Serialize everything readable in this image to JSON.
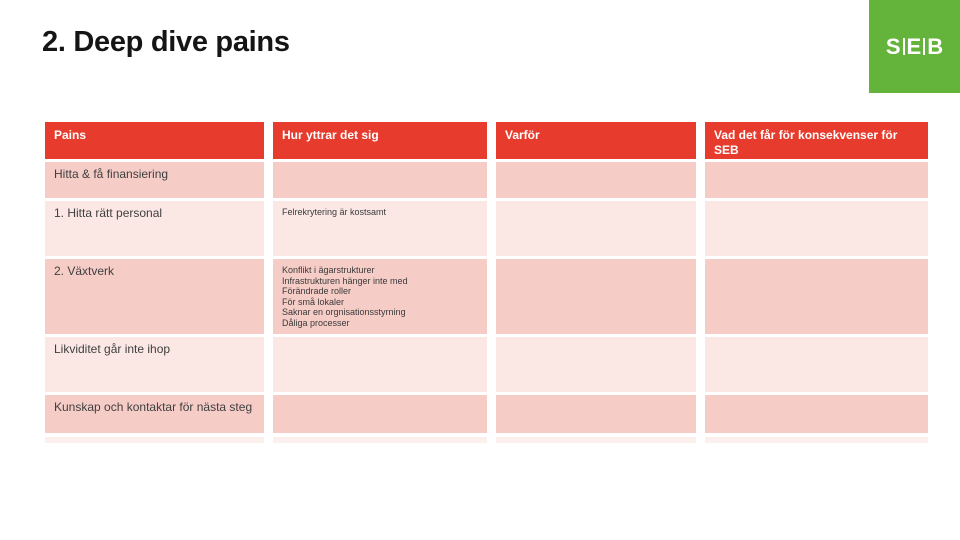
{
  "slide": {
    "title": "2. Deep dive pains"
  },
  "logo": {
    "letters": [
      "S",
      "E",
      "B"
    ]
  },
  "table": {
    "headers": [
      "Pains",
      "Hur yttrar det sig",
      "Varför",
      "Vad det får för konsekvenser för SEB"
    ],
    "rows": [
      {
        "pains": "Hitta & få finansiering",
        "hur": "",
        "varfor": "",
        "konsekvenser": ""
      },
      {
        "pains": "1. Hitta rätt personal",
        "hur": "Felrekrytering är kostsamt",
        "varfor": "",
        "konsekvenser": ""
      },
      {
        "pains": "2. Växtverk",
        "hur": [
          "Konflikt i ägarstrukturer",
          "Infrastrukturen hänger inte med",
          "Förändrade roller",
          "För små lokaler",
          "Saknar en orgnisationsstyrning",
          "Dåliga processer"
        ],
        "varfor": "",
        "konsekvenser": ""
      },
      {
        "pains": "Likviditet går inte ihop",
        "hur": "",
        "varfor": "",
        "konsekvenser": ""
      },
      {
        "pains": "Kunskap och kontaktar för nästa steg",
        "hur": "",
        "varfor": "",
        "konsekvenser": ""
      }
    ]
  },
  "colors": {
    "brand_red": "#E63B2D",
    "logo_green": "#64B43C",
    "row_pink_dark": "#F6CCC7",
    "row_pink_light": "#FBE8E5",
    "text_dark": "#3f3f3f"
  }
}
